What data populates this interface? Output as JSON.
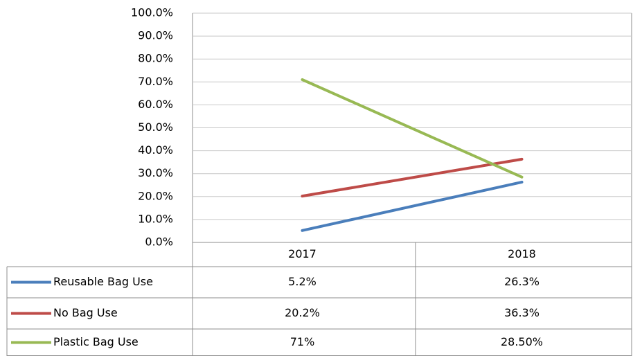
{
  "chart_data": {
    "type": "line",
    "categories": [
      "2017",
      "2018"
    ],
    "series": [
      {
        "name": "Reusable Bag Use",
        "color": "#4a7ebb",
        "values": [
          5.2,
          26.3
        ],
        "value_labels": [
          "5.2%",
          "26.3%"
        ]
      },
      {
        "name": "No Bag Use",
        "color": "#be4b48",
        "values": [
          20.2,
          36.3
        ],
        "value_labels": [
          "20.2%",
          "36.3%"
        ]
      },
      {
        "name": "Plastic Bag Use",
        "color": "#98b954",
        "values": [
          71,
          28.5
        ],
        "value_labels": [
          "71%",
          "28.50%"
        ]
      }
    ],
    "ylim": [
      0,
      100
    ],
    "yticks": [
      {
        "value": 0,
        "label": "0.0%"
      },
      {
        "value": 10,
        "label": "10.0%"
      },
      {
        "value": 20,
        "label": "20.0%"
      },
      {
        "value": 30,
        "label": "30.0%"
      },
      {
        "value": 40,
        "label": "40.0%"
      },
      {
        "value": 50,
        "label": "50.0%"
      },
      {
        "value": 60,
        "label": "60.0%"
      },
      {
        "value": 70,
        "label": "70.0%"
      },
      {
        "value": 80,
        "label": "80.0%"
      },
      {
        "value": 90,
        "label": "90.0%"
      },
      {
        "value": 100,
        "label": "100.0%"
      }
    ],
    "grid": true
  }
}
